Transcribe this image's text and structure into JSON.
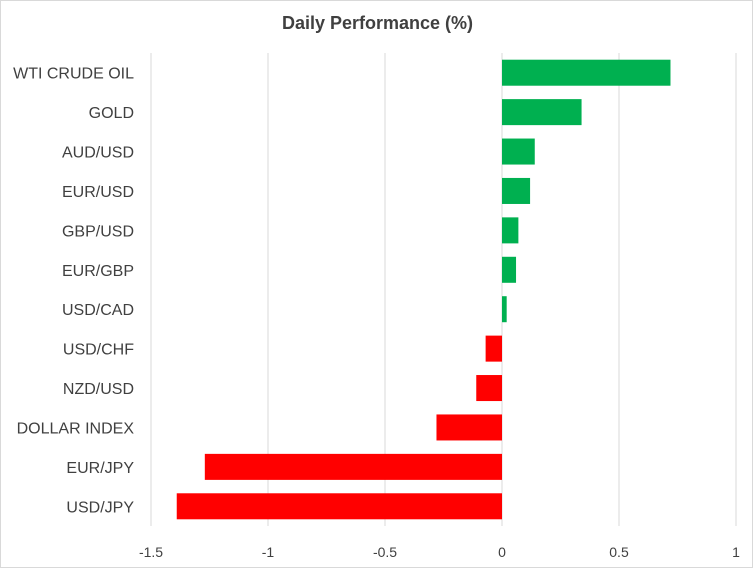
{
  "chart_data": {
    "type": "bar",
    "orientation": "horizontal",
    "title": "Daily Performance (%)",
    "xlabel": "",
    "ylabel": "",
    "categories": [
      "WTI CRUDE OIL",
      "GOLD",
      "AUD/USD",
      "EUR/USD",
      "GBP/USD",
      "EUR/GBP",
      "USD/CAD",
      "USD/CHF",
      "NZD/USD",
      "DOLLAR INDEX",
      "EUR/JPY",
      "USD/JPY"
    ],
    "values": [
      0.72,
      0.34,
      0.14,
      0.12,
      0.07,
      0.06,
      0.02,
      -0.07,
      -0.11,
      -0.28,
      -1.27,
      -1.39
    ],
    "xlim": [
      -1.5,
      1
    ],
    "x_ticks": [
      -1.5,
      -1,
      -0.5,
      0,
      0.5,
      1
    ],
    "x_tick_labels": [
      "-1.5",
      "-1",
      "-0.5",
      "0",
      "0.5",
      "1"
    ],
    "grid": "vertical",
    "legend": "none",
    "colors": {
      "positive": "#00b050",
      "negative": "#ff0000",
      "grid": "#d9d9d9",
      "text": "#404040"
    }
  }
}
